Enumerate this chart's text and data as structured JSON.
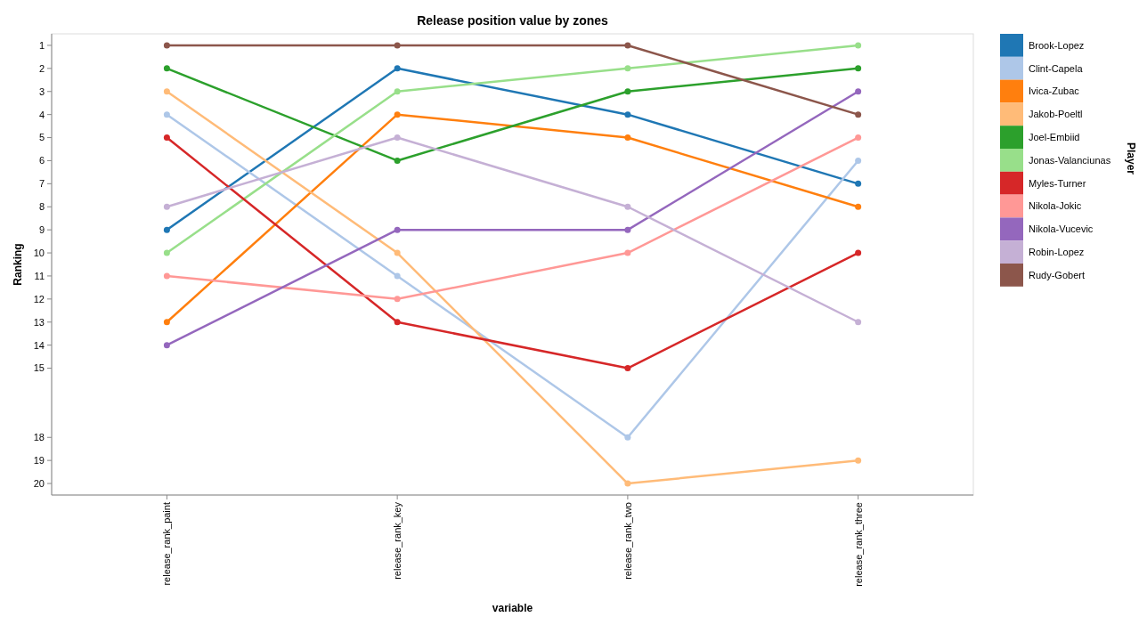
{
  "chart_data": {
    "type": "line",
    "title": "Release position value by zones",
    "xlabel": "variable",
    "ylabel": "Ranking",
    "legend_title": "Player",
    "categories": [
      "release_rank_paint",
      "release_rank_key",
      "release_rank_two",
      "release_rank_three"
    ],
    "ylim": [
      20.5,
      0.5
    ],
    "yticks": [
      1,
      2,
      3,
      4,
      5,
      6,
      7,
      8,
      9,
      10,
      11,
      12,
      13,
      14,
      15,
      18,
      19,
      20
    ],
    "grid": false,
    "legend": "right",
    "marker": "circle",
    "line_style": "solid",
    "series": [
      {
        "name": "Brook-Lopez",
        "color": "#1f77b4",
        "values": [
          9,
          2,
          4,
          7
        ]
      },
      {
        "name": "Clint-Capela",
        "color": "#aec7e8",
        "values": [
          4,
          11,
          18,
          6
        ]
      },
      {
        "name": "Ivica-Zubac",
        "color": "#ff7f0e",
        "values": [
          13,
          4,
          5,
          8
        ]
      },
      {
        "name": "Jakob-Poeltl",
        "color": "#ffbb78",
        "values": [
          3,
          10,
          20,
          19
        ]
      },
      {
        "name": "Joel-Embiid",
        "color": "#2ca02c",
        "values": [
          2,
          6,
          3,
          2
        ]
      },
      {
        "name": "Jonas-Valanciunas",
        "color": "#98df8a",
        "values": [
          10,
          3,
          2,
          1
        ]
      },
      {
        "name": "Myles-Turner",
        "color": "#d62728",
        "values": [
          5,
          13,
          15,
          10
        ]
      },
      {
        "name": "Nikola-Jokic",
        "color": "#ff9896",
        "values": [
          11,
          12,
          10,
          5
        ]
      },
      {
        "name": "Nikola-Vucevic",
        "color": "#9467bd",
        "values": [
          14,
          9,
          9,
          3
        ]
      },
      {
        "name": "Robin-Lopez",
        "color": "#c5b0d5",
        "values": [
          8,
          5,
          8,
          13
        ]
      },
      {
        "name": "Rudy-Gobert",
        "color": "#8c564b",
        "values": [
          1,
          1,
          1,
          4
        ]
      }
    ]
  }
}
